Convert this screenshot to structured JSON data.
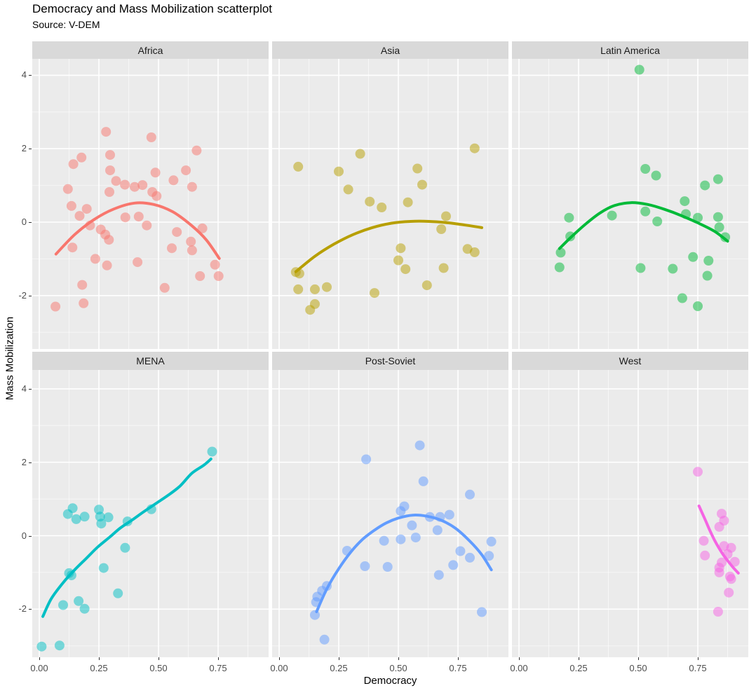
{
  "title": "Democracy and Mass Mobilization scatterplot",
  "subtitle": "Source: V-DEM",
  "axes": {
    "x_label": "Democracy",
    "y_label": "Mass Mobilization",
    "x_tick_labels": [
      "0.00",
      "0.25",
      "0.50",
      "0.75"
    ],
    "x_tick_values": [
      0,
      0.25,
      0.5,
      0.75
    ],
    "x_minor_values": [
      0.125,
      0.375,
      0.625,
      0.875
    ],
    "y_tick_labels": [
      "4",
      "2",
      "0",
      "-2"
    ],
    "y_tick_values": [
      4,
      2,
      0,
      -2
    ],
    "y_minor_values": [
      3,
      1,
      -1,
      -3
    ]
  },
  "style": {
    "panel_bg": "#EBEBEB",
    "strip_bg": "#D9D9D9",
    "grid_major": "#FFFFFF",
    "grid_minor": "#FFFFFF",
    "tick_label_color": "#4D4D4D",
    "point_opacity": 0.5
  },
  "chart_data": {
    "type": "scatter",
    "xlim": [
      -0.03,
      0.96
    ],
    "ylim": [
      -3.45,
      4.45
    ],
    "grid": true,
    "legend": "none",
    "facets": [
      {
        "name": "Africa",
        "color": "#F8766D",
        "points": [
          [
            0.28,
            2.46
          ],
          [
            0.47,
            2.31
          ],
          [
            0.66,
            1.95
          ],
          [
            0.177,
            1.76
          ],
          [
            0.143,
            1.58
          ],
          [
            0.297,
            1.83
          ],
          [
            0.297,
            1.41
          ],
          [
            0.487,
            1.35
          ],
          [
            0.615,
            1.41
          ],
          [
            0.563,
            1.14
          ],
          [
            0.322,
            1.12
          ],
          [
            0.359,
            1.02
          ],
          [
            0.4,
            0.96
          ],
          [
            0.433,
            1.01
          ],
          [
            0.641,
            0.96
          ],
          [
            0.12,
            0.9
          ],
          [
            0.294,
            0.82
          ],
          [
            0.474,
            0.82
          ],
          [
            0.492,
            0.71
          ],
          [
            0.135,
            0.44
          ],
          [
            0.199,
            0.36
          ],
          [
            0.169,
            0.17
          ],
          [
            0.361,
            0.13
          ],
          [
            0.417,
            0.15
          ],
          [
            0.213,
            -0.09
          ],
          [
            0.451,
            -0.09
          ],
          [
            0.258,
            -0.2
          ],
          [
            0.277,
            -0.34
          ],
          [
            0.292,
            -0.48
          ],
          [
            0.684,
            -0.17
          ],
          [
            0.577,
            -0.27
          ],
          [
            0.636,
            -0.53
          ],
          [
            0.139,
            -0.69
          ],
          [
            0.556,
            -0.71
          ],
          [
            0.641,
            -0.77
          ],
          [
            0.235,
            -1.0
          ],
          [
            0.412,
            -1.09
          ],
          [
            0.284,
            -1.18
          ],
          [
            0.737,
            -1.16
          ],
          [
            0.674,
            -1.47
          ],
          [
            0.752,
            -1.47
          ],
          [
            0.18,
            -1.71
          ],
          [
            0.526,
            -1.79
          ],
          [
            0.186,
            -2.21
          ],
          [
            0.068,
            -2.3
          ]
        ],
        "smooth": [
          [
            0.07,
            -0.87
          ],
          [
            0.15,
            -0.33
          ],
          [
            0.23,
            0.07
          ],
          [
            0.31,
            0.35
          ],
          [
            0.4,
            0.52
          ],
          [
            0.48,
            0.48
          ],
          [
            0.56,
            0.28
          ],
          [
            0.64,
            -0.1
          ],
          [
            0.7,
            -0.48
          ],
          [
            0.755,
            -0.99
          ]
        ]
      },
      {
        "name": "Asia",
        "color": "#B79F00",
        "points": [
          [
            0.34,
            1.86
          ],
          [
            0.82,
            2.01
          ],
          [
            0.08,
            1.51
          ],
          [
            0.25,
            1.38
          ],
          [
            0.58,
            1.46
          ],
          [
            0.6,
            1.02
          ],
          [
            0.29,
            0.89
          ],
          [
            0.38,
            0.56
          ],
          [
            0.43,
            0.4
          ],
          [
            0.54,
            0.54
          ],
          [
            0.7,
            0.16
          ],
          [
            0.68,
            -0.19
          ],
          [
            0.51,
            -0.71
          ],
          [
            0.79,
            -0.73
          ],
          [
            0.82,
            -0.82
          ],
          [
            0.5,
            -1.04
          ],
          [
            0.53,
            -1.28
          ],
          [
            0.69,
            -1.25
          ],
          [
            0.07,
            -1.36
          ],
          [
            0.085,
            -1.4
          ],
          [
            0.62,
            -1.72
          ],
          [
            0.08,
            -1.83
          ],
          [
            0.15,
            -1.83
          ],
          [
            0.2,
            -1.77
          ],
          [
            0.4,
            -1.93
          ],
          [
            0.15,
            -2.23
          ],
          [
            0.13,
            -2.39
          ]
        ],
        "smooth": [
          [
            0.07,
            -1.35
          ],
          [
            0.15,
            -0.93
          ],
          [
            0.23,
            -0.6
          ],
          [
            0.31,
            -0.34
          ],
          [
            0.39,
            -0.15
          ],
          [
            0.47,
            -0.03
          ],
          [
            0.55,
            0.02
          ],
          [
            0.63,
            0.02
          ],
          [
            0.71,
            -0.02
          ],
          [
            0.78,
            -0.08
          ],
          [
            0.85,
            -0.15
          ]
        ]
      },
      {
        "name": "Latin America",
        "color": "#00BA38",
        "points": [
          [
            0.505,
            4.15
          ],
          [
            0.53,
            1.45
          ],
          [
            0.575,
            1.27
          ],
          [
            0.835,
            1.17
          ],
          [
            0.78,
            1.0
          ],
          [
            0.695,
            0.57
          ],
          [
            0.53,
            0.29
          ],
          [
            0.39,
            0.18
          ],
          [
            0.21,
            0.12
          ],
          [
            0.58,
            0.02
          ],
          [
            0.7,
            0.22
          ],
          [
            0.75,
            0.12
          ],
          [
            0.835,
            0.14
          ],
          [
            0.84,
            -0.14
          ],
          [
            0.865,
            -0.41
          ],
          [
            0.215,
            -0.39
          ],
          [
            0.175,
            -0.83
          ],
          [
            0.17,
            -1.23
          ],
          [
            0.73,
            -0.95
          ],
          [
            0.795,
            -1.05
          ],
          [
            0.51,
            -1.25
          ],
          [
            0.645,
            -1.27
          ],
          [
            0.79,
            -1.46
          ],
          [
            0.685,
            -2.07
          ],
          [
            0.75,
            -2.29
          ]
        ],
        "smooth": [
          [
            0.17,
            -0.72
          ],
          [
            0.22,
            -0.4
          ],
          [
            0.28,
            -0.05
          ],
          [
            0.34,
            0.25
          ],
          [
            0.4,
            0.45
          ],
          [
            0.47,
            0.53
          ],
          [
            0.54,
            0.48
          ],
          [
            0.61,
            0.35
          ],
          [
            0.68,
            0.18
          ],
          [
            0.75,
            -0.02
          ],
          [
            0.82,
            -0.25
          ],
          [
            0.875,
            -0.52
          ]
        ]
      },
      {
        "name": "MENA",
        "color": "#00BFC4",
        "points": [
          [
            0.725,
            2.29
          ],
          [
            0.14,
            0.75
          ],
          [
            0.12,
            0.59
          ],
          [
            0.155,
            0.45
          ],
          [
            0.19,
            0.52
          ],
          [
            0.25,
            0.71
          ],
          [
            0.255,
            0.52
          ],
          [
            0.26,
            0.33
          ],
          [
            0.29,
            0.5
          ],
          [
            0.37,
            0.39
          ],
          [
            0.47,
            0.72
          ],
          [
            0.36,
            -0.33
          ],
          [
            0.27,
            -0.88
          ],
          [
            0.125,
            -1.02
          ],
          [
            0.135,
            -1.08
          ],
          [
            0.33,
            -1.57
          ],
          [
            0.165,
            -1.78
          ],
          [
            0.1,
            -1.89
          ],
          [
            0.19,
            -1.99
          ],
          [
            0.01,
            -3.02
          ],
          [
            0.085,
            -2.99
          ]
        ],
        "smooth": [
          [
            0.015,
            -2.2
          ],
          [
            0.05,
            -1.72
          ],
          [
            0.1,
            -1.28
          ],
          [
            0.15,
            -0.92
          ],
          [
            0.2,
            -0.6
          ],
          [
            0.245,
            -0.31
          ],
          [
            0.295,
            -0.04
          ],
          [
            0.34,
            0.21
          ],
          [
            0.39,
            0.43
          ],
          [
            0.44,
            0.66
          ],
          [
            0.49,
            0.88
          ],
          [
            0.54,
            1.1
          ],
          [
            0.59,
            1.35
          ],
          [
            0.64,
            1.7
          ],
          [
            0.69,
            1.92
          ],
          [
            0.72,
            2.09
          ]
        ]
      },
      {
        "name": "Post-Soviet",
        "color": "#619CFF",
        "points": [
          [
            0.59,
            2.46
          ],
          [
            0.365,
            2.08
          ],
          [
            0.605,
            1.48
          ],
          [
            0.8,
            1.12
          ],
          [
            0.525,
            0.8
          ],
          [
            0.51,
            0.67
          ],
          [
            0.632,
            0.51
          ],
          [
            0.675,
            0.51
          ],
          [
            0.714,
            0.57
          ],
          [
            0.557,
            0.28
          ],
          [
            0.664,
            0.15
          ],
          [
            0.573,
            -0.05
          ],
          [
            0.51,
            -0.1
          ],
          [
            0.44,
            -0.14
          ],
          [
            0.89,
            -0.16
          ],
          [
            0.285,
            -0.41
          ],
          [
            0.76,
            -0.42
          ],
          [
            0.8,
            -0.6
          ],
          [
            0.88,
            -0.55
          ],
          [
            0.36,
            -0.83
          ],
          [
            0.455,
            -0.85
          ],
          [
            0.73,
            -0.8
          ],
          [
            0.67,
            -1.07
          ],
          [
            0.2,
            -1.37
          ],
          [
            0.18,
            -1.5
          ],
          [
            0.16,
            -1.66
          ],
          [
            0.155,
            -1.81
          ],
          [
            0.15,
            -2.16
          ],
          [
            0.85,
            -2.08
          ],
          [
            0.19,
            -2.83
          ]
        ],
        "smooth": [
          [
            0.157,
            -2.07
          ],
          [
            0.2,
            -1.45
          ],
          [
            0.25,
            -0.9
          ],
          [
            0.3,
            -0.45
          ],
          [
            0.35,
            -0.1
          ],
          [
            0.4,
            0.15
          ],
          [
            0.45,
            0.35
          ],
          [
            0.5,
            0.48
          ],
          [
            0.56,
            0.56
          ],
          [
            0.62,
            0.53
          ],
          [
            0.68,
            0.42
          ],
          [
            0.74,
            0.2
          ],
          [
            0.8,
            -0.15
          ],
          [
            0.85,
            -0.52
          ],
          [
            0.89,
            -0.93
          ]
        ]
      },
      {
        "name": "West",
        "color": "#F564E3",
        "points": [
          [
            0.75,
            1.74
          ],
          [
            0.85,
            0.6
          ],
          [
            0.86,
            0.41
          ],
          [
            0.84,
            0.24
          ],
          [
            0.775,
            -0.14
          ],
          [
            0.86,
            -0.28
          ],
          [
            0.89,
            -0.33
          ],
          [
            0.78,
            -0.54
          ],
          [
            0.875,
            -0.5
          ],
          [
            0.85,
            -0.73
          ],
          [
            0.905,
            -0.71
          ],
          [
            0.84,
            -0.87
          ],
          [
            0.84,
            -1.0
          ],
          [
            0.885,
            -1.11
          ],
          [
            0.89,
            -1.18
          ],
          [
            0.88,
            -1.55
          ],
          [
            0.835,
            -2.07
          ]
        ],
        "smooth": [
          [
            0.755,
            0.81
          ],
          [
            0.78,
            0.45
          ],
          [
            0.8,
            0.15
          ],
          [
            0.82,
            -0.12
          ],
          [
            0.84,
            -0.35
          ],
          [
            0.86,
            -0.55
          ],
          [
            0.88,
            -0.72
          ],
          [
            0.9,
            -0.88
          ],
          [
            0.92,
            -1.02
          ]
        ]
      }
    ]
  }
}
